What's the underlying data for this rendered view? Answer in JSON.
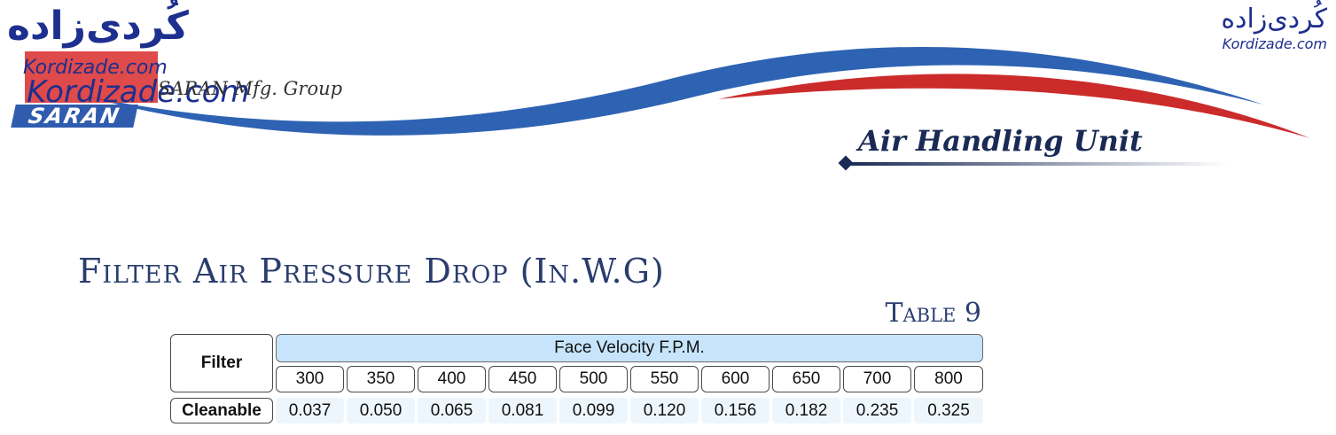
{
  "header": {
    "logo_fa": "کُردی‌زاده",
    "watermark_en": "Kordizade.com",
    "watermark_en_large": "Kordizade.com",
    "group_text": "SARAN Mfg. Group",
    "saran_logo": "SARAN",
    "top_right_fa": "کُردی‌زاده",
    "top_right_en": "Kordizade.com",
    "section_title": "Air Handling Unit",
    "colors": {
      "blue": "#2e63b3",
      "red": "#cc2b2b",
      "navy": "#1a2a55"
    }
  },
  "page": {
    "title": "Filter Air Pressure Drop (In.W.G)",
    "table_label": "Table 9"
  },
  "table": {
    "row_header": "Filter",
    "group_header": "Face Velocity F.P.M.",
    "columns": [
      "300",
      "350",
      "400",
      "450",
      "500",
      "550",
      "600",
      "650",
      "700",
      "800"
    ],
    "rows": [
      {
        "label": "Cleanable",
        "values": [
          "0.037",
          "0.050",
          "0.065",
          "0.081",
          "0.099",
          "0.120",
          "0.156",
          "0.182",
          "0.235",
          "0.325"
        ]
      }
    ]
  }
}
